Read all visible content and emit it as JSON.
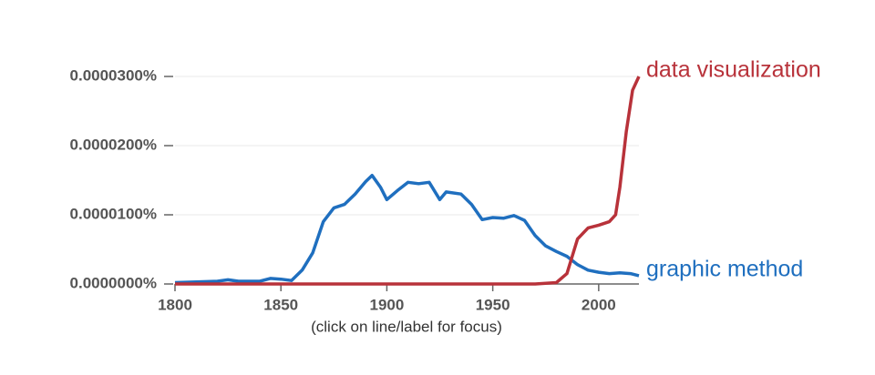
{
  "chart_data": {
    "type": "line",
    "subtitle": "(click on line/label for focus)",
    "xlim": [
      1800,
      2019
    ],
    "xticks": [
      1800,
      1850,
      1900,
      1950,
      2000
    ],
    "ylim": [
      0,
      3e-05
    ],
    "yticks": [
      {
        "value": 0,
        "label": "0.0000000%"
      },
      {
        "value": 1e-05,
        "label": "0.0000100%"
      },
      {
        "value": 2e-05,
        "label": "0.0000200%"
      },
      {
        "value": 3e-05,
        "label": "0.0000300%"
      }
    ],
    "grid": true,
    "series": [
      {
        "name": "graphic method",
        "color": "#1f6fbf",
        "x": [
          1800,
          1810,
          1820,
          1825,
          1830,
          1840,
          1845,
          1850,
          1855,
          1860,
          1865,
          1870,
          1875,
          1880,
          1885,
          1890,
          1893,
          1897,
          1900,
          1905,
          1910,
          1915,
          1920,
          1925,
          1928,
          1935,
          1940,
          1945,
          1950,
          1955,
          1960,
          1965,
          1970,
          1975,
          1980,
          1985,
          1990,
          1995,
          2000,
          2005,
          2010,
          2015,
          2019
        ],
        "values": [
          2e-07,
          3e-07,
          4e-07,
          6e-07,
          4e-07,
          4e-07,
          8e-07,
          7e-07,
          5e-07,
          2e-06,
          4.5e-06,
          9e-06,
          1.1e-05,
          1.15e-05,
          1.3e-05,
          1.48e-05,
          1.57e-05,
          1.4e-05,
          1.22e-05,
          1.35e-05,
          1.47e-05,
          1.45e-05,
          1.47e-05,
          1.22e-05,
          1.33e-05,
          1.3e-05,
          1.15e-05,
          9.3e-06,
          9.6e-06,
          9.5e-06,
          9.9e-06,
          9.2e-06,
          7e-06,
          5.5e-06,
          4.7e-06,
          4e-06,
          2.8e-06,
          2e-06,
          1.7e-06,
          1.5e-06,
          1.6e-06,
          1.5e-06,
          1.2e-06
        ]
      },
      {
        "name": "data visualization",
        "color": "#b8323a",
        "x": [
          1800,
          1900,
          1970,
          1975,
          1980,
          1985,
          1990,
          1995,
          2000,
          2005,
          2008,
          2010,
          2013,
          2016,
          2019
        ],
        "values": [
          0,
          0,
          0,
          1e-07,
          2e-07,
          1.5e-06,
          6.5e-06,
          8.1e-06,
          8.5e-06,
          9e-06,
          1e-05,
          1.4e-05,
          2.2e-05,
          2.8e-05,
          3e-05
        ]
      }
    ]
  }
}
